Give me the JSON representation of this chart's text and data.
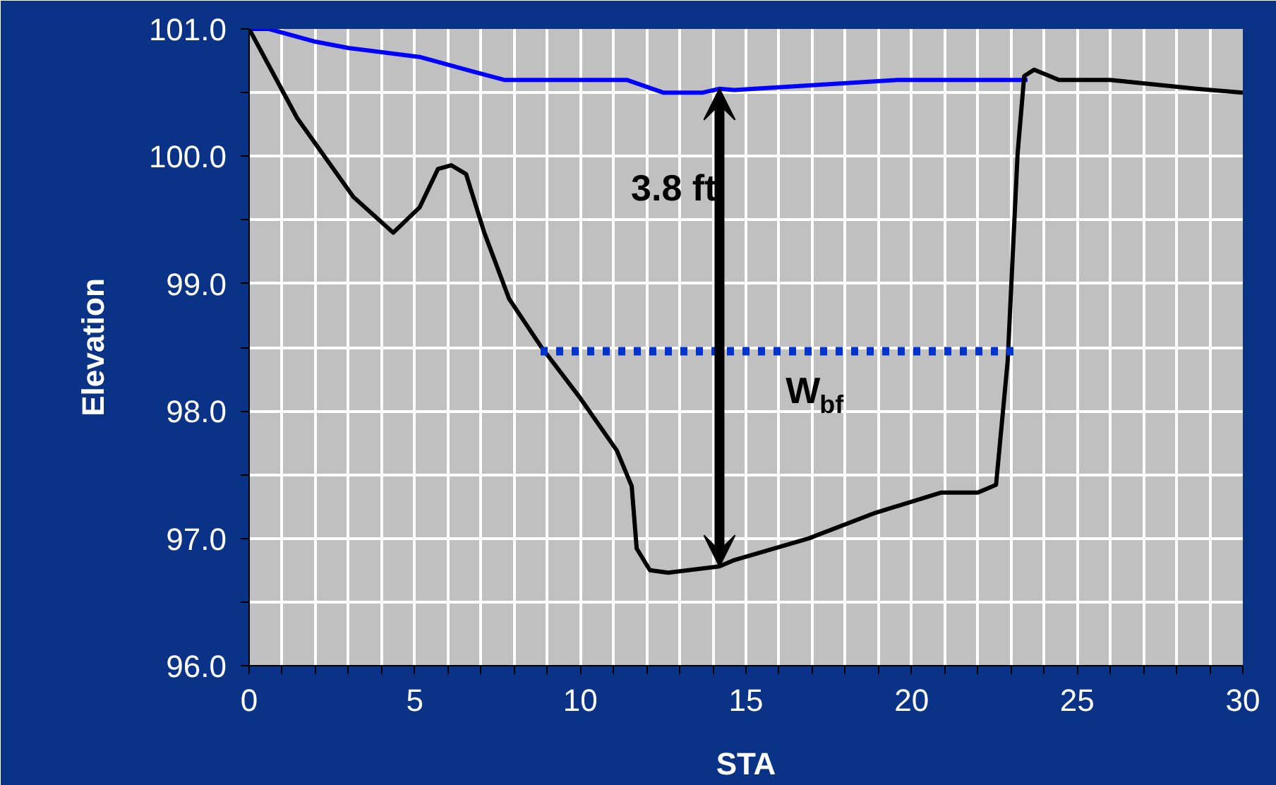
{
  "chart_data": {
    "type": "line",
    "xlabel": "STA",
    "ylabel": "Elevation",
    "xlim": [
      0,
      30
    ],
    "ylim": [
      96,
      101
    ],
    "xticks": [
      0,
      {
        "value": 1,
        "label": null
      },
      {
        "value": 2,
        "label": null
      },
      {
        "value": 3,
        "label": null
      },
      {
        "value": 4,
        "label": null
      },
      5,
      {
        "value": 6,
        "label": null
      },
      {
        "value": 7,
        "label": null
      },
      {
        "value": 8,
        "label": null
      },
      {
        "value": 9,
        "label": null
      },
      10,
      {
        "value": 11,
        "label": null
      },
      {
        "value": 12,
        "label": null
      },
      {
        "value": 13,
        "label": null
      },
      {
        "value": 14,
        "label": null
      },
      15,
      {
        "value": 16,
        "label": null
      },
      {
        "value": 17,
        "label": null
      },
      {
        "value": 18,
        "label": null
      },
      {
        "value": 19,
        "label": null
      },
      20,
      {
        "value": 21,
        "label": null
      },
      {
        "value": 22,
        "label": null
      },
      {
        "value": 23,
        "label": null
      },
      {
        "value": 24,
        "label": null
      },
      25,
      {
        "value": 26,
        "label": null
      },
      {
        "value": 27,
        "label": null
      },
      {
        "value": 28,
        "label": null
      },
      {
        "value": 29,
        "label": null
      },
      30
    ],
    "yticks": [
      {
        "value": 96,
        "label": "96.0"
      },
      {
        "value": 96.5,
        "label": null
      },
      {
        "value": 97,
        "label": "97.0"
      },
      {
        "value": 97.5,
        "label": null
      },
      {
        "value": 98,
        "label": "98.0"
      },
      {
        "value": 98.5,
        "label": null
      },
      {
        "value": 99,
        "label": "99.0"
      },
      {
        "value": 99.5,
        "label": null
      },
      {
        "value": 100,
        "label": "100.0"
      },
      {
        "value": 100.5,
        "label": null
      },
      {
        "value": 101,
        "label": "101.0"
      }
    ],
    "grid": true,
    "marker": "none",
    "line_style": "solid",
    "series": [
      {
        "color": "#0000ff",
        "x": [
          0,
          0.6,
          2.0,
          3.0,
          5.15,
          6.7,
          7.7,
          11.4,
          12.5,
          13.7,
          14.2,
          14.65,
          19.6,
          23.5
        ],
        "values": [
          101.0,
          101.0,
          100.9,
          100.85,
          100.78,
          100.67,
          100.6,
          100.6,
          100.5,
          100.5,
          100.53,
          100.52,
          100.6,
          100.6
        ]
      },
      {
        "color": "#000000",
        "x": [
          0,
          1.45,
          3.15,
          4.35,
          5.15,
          5.7,
          6.1,
          6.55,
          7.1,
          7.85,
          8.8,
          10.0,
          11.1,
          11.55,
          11.7,
          12.1,
          12.65,
          14.2,
          14.65,
          16.9,
          18.9,
          20.9,
          22.0,
          22.55,
          22.9,
          23.2,
          23.4,
          23.7,
          24.45,
          26.0,
          28.6,
          30
        ],
        "values": [
          101.0,
          100.3,
          99.68,
          99.4,
          99.6,
          99.9,
          99.93,
          99.86,
          99.4,
          98.88,
          98.51,
          98.1,
          97.69,
          97.41,
          96.92,
          96.75,
          96.73,
          96.78,
          96.83,
          97.0,
          97.2,
          97.36,
          97.36,
          97.42,
          98.39,
          100.02,
          100.63,
          100.68,
          100.6,
          100.6,
          100.53,
          100.5
        ]
      },
      {
        "color": "#0033cc",
        "line_style": "dotted",
        "x": [
          8.8,
          23.1
        ],
        "values": [
          98.47,
          98.47
        ]
      }
    ],
    "annotations": [
      {
        "text": "3.8 ft",
        "x": 14.2,
        "y": 100.53
      },
      {
        "text": "W$_{bf}$",
        "x": 16.2,
        "y": 98.47
      }
    ]
  }
}
